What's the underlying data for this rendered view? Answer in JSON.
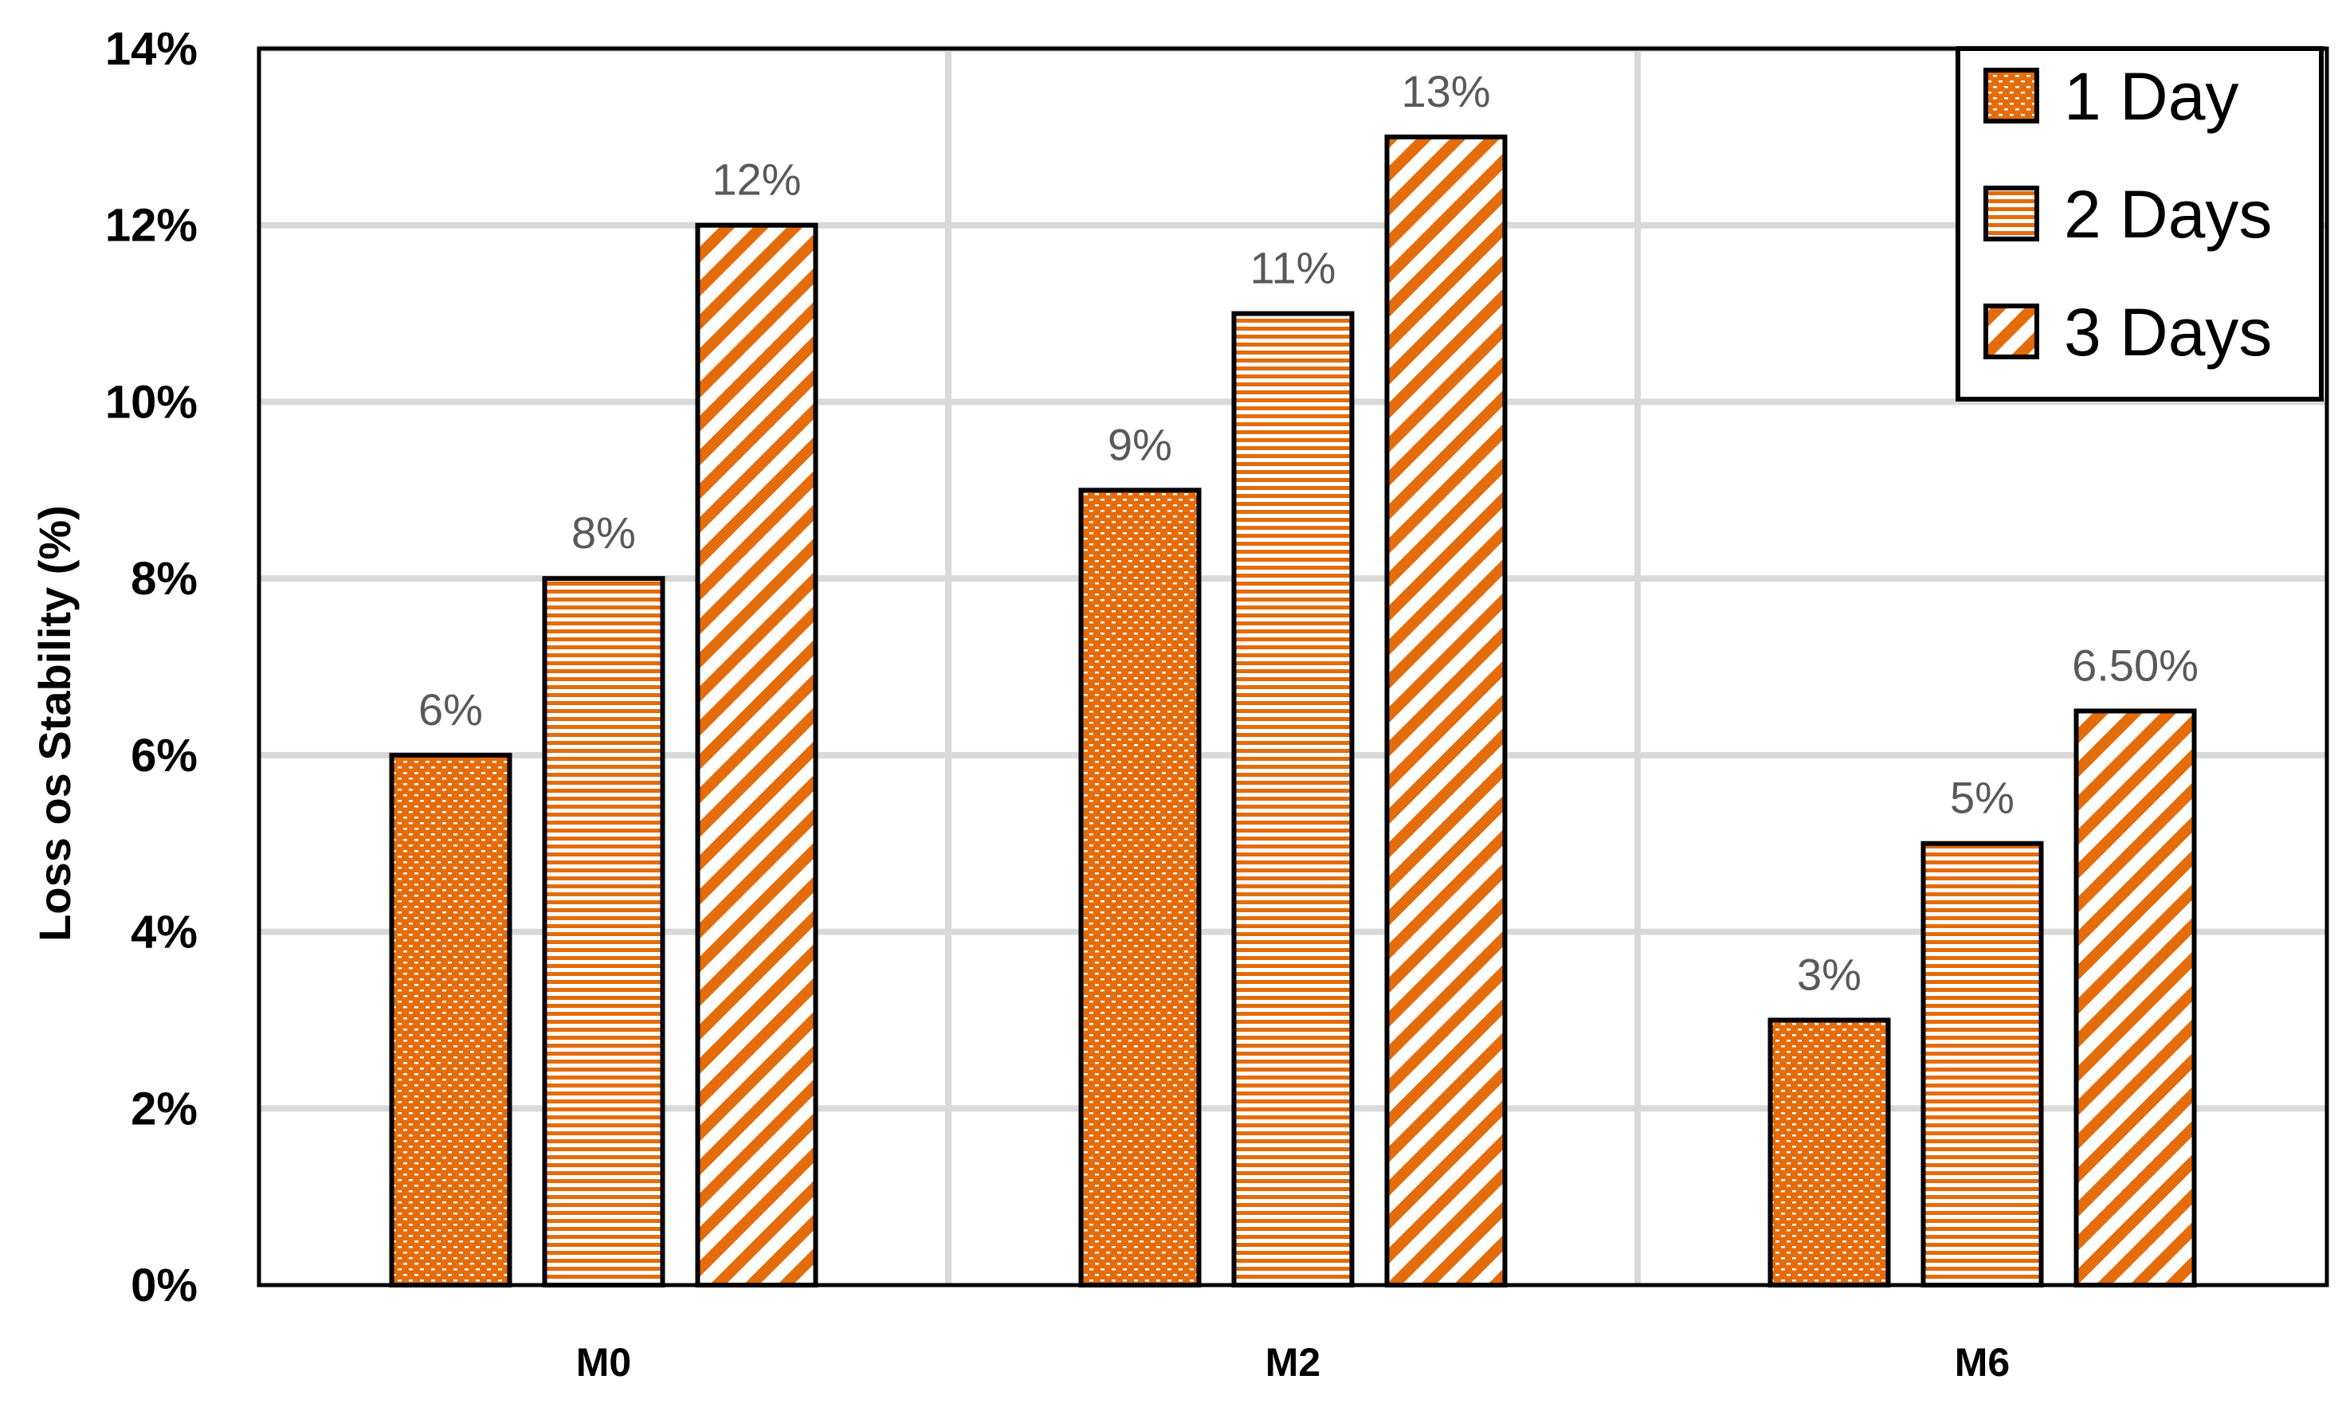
{
  "chart_data": {
    "type": "bar",
    "title": "",
    "xlabel": "",
    "ylabel": "Loss os Stability (%)",
    "ylim": [
      0,
      14
    ],
    "yticks": [
      "0%",
      "2%",
      "4%",
      "6%",
      "8%",
      "10%",
      "12%",
      "14%"
    ],
    "ytick_values": [
      0,
      2,
      4,
      6,
      8,
      10,
      12,
      14
    ],
    "categories": [
      "M0",
      "M2",
      "M6"
    ],
    "grid": true,
    "legend_position": "top-right",
    "series": [
      {
        "name": "1 Day",
        "pattern": "dots",
        "values": [
          6,
          9,
          3
        ],
        "labels": [
          "6%",
          "9%",
          "3%"
        ]
      },
      {
        "name": "2 Days",
        "pattern": "horizontal",
        "values": [
          8,
          11,
          5
        ],
        "labels": [
          "8%",
          "11%",
          "5%"
        ]
      },
      {
        "name": "3 Days",
        "pattern": "diagonal",
        "values": [
          12,
          13,
          6.5
        ],
        "labels": [
          "12%",
          "13%",
          "6.50%"
        ]
      }
    ],
    "colors": {
      "accent": "#e46c0a",
      "grid": "#d9d9d9",
      "data_label": "#595959",
      "border": "#000000"
    }
  }
}
